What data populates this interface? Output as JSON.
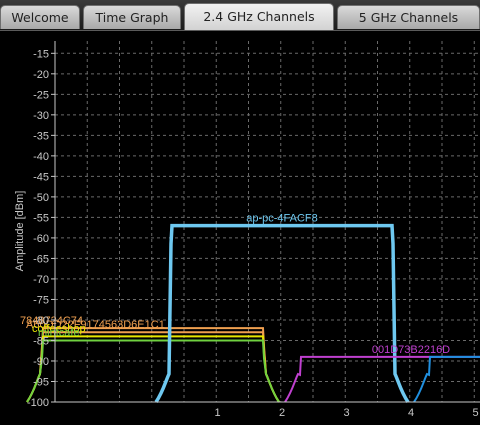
{
  "tabs": [
    {
      "label": "Welcome",
      "active": false
    },
    {
      "label": "Time Graph",
      "active": false
    },
    {
      "label": "2.4 GHz Channels",
      "active": true
    },
    {
      "label": "5 GHz Channels",
      "active": false
    }
  ],
  "chart_data": {
    "type": "area",
    "ylabel": "Amplitude [dBm]",
    "y_ticks": [
      "-15",
      "-20",
      "-25",
      "-30",
      "-35",
      "-40",
      "-45",
      "-50",
      "-55",
      "-60",
      "-65",
      "-70",
      "-75",
      "-80",
      "-85",
      "-90",
      "-95",
      "-100"
    ],
    "y_range": [
      -100,
      -12
    ],
    "x_ticks": [
      "1",
      "2",
      "3",
      "4",
      "5"
    ],
    "grid": true,
    "networks": [
      {
        "name": "7848724C74",
        "channel": 0,
        "amplitude": -82,
        "color": "#f0a050"
      },
      {
        "name": "A60DD22F9174563D6E1C1",
        "channel": 0,
        "amplitude": -83,
        "color": "#f0a050"
      },
      {
        "name": "coffeeshop",
        "channel": 0,
        "amplitude": -84,
        "color": "#e6e600"
      },
      {
        "name": "mintcafe",
        "channel": 0,
        "amplitude": -85,
        "color": "#70d040"
      },
      {
        "name": "ap-pc-4FACF8",
        "channel": 2,
        "amplitude": -57,
        "color": "#6ec8f0"
      },
      {
        "name": "001D73B2216D",
        "channel": 4,
        "amplitude": -89,
        "color": "#c040d0"
      },
      {
        "name": "",
        "channel": 6,
        "amplitude": -89,
        "color": "#2090e0"
      }
    ]
  },
  "colors": {
    "grid": "#6a6a6a",
    "axis": "#c8c8c8",
    "background": "#000000"
  }
}
